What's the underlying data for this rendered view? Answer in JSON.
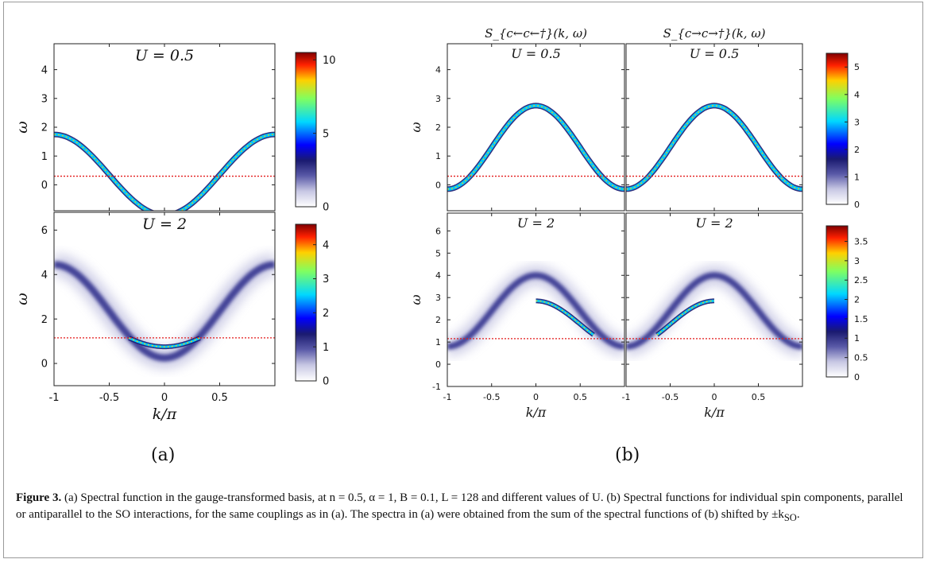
{
  "figure": {
    "label_a": "(a)",
    "label_b": "(b)",
    "caption_lead": "Figure 3.",
    "caption_text": "(a) Spectral function in the gauge-transformed basis, at n = 0.5, α = 1, B = 0.1, L = 128 and different values of U. (b) Spectral functions for individual spin components, parallel or antiparallel to the SO interactions, for the same couplings as in (a). The spectra in (a) were obtained from the sum of the spectral functions of (b) shifted by ±k",
    "caption_sub": "SO",
    "caption_end": "."
  },
  "chart_data": [
    {
      "type": "heatmap",
      "panel": "a-top",
      "title": "U = 0.5",
      "ylabel": "ω",
      "xlim": [
        -1,
        1
      ],
      "ylim": [
        -0.9,
        4.9
      ],
      "yticks": [
        "0",
        "1",
        "2",
        "3",
        "4"
      ],
      "colorbar": {
        "range": [
          0,
          10.5
        ],
        "ticks": [
          "0",
          "5",
          "10"
        ]
      },
      "fermi_line": 0.3
    },
    {
      "type": "heatmap",
      "panel": "a-bottom",
      "title": "U = 2",
      "xlabel": "k/π",
      "ylabel": "ω",
      "xlim": [
        -1,
        1
      ],
      "ylim": [
        -1,
        6.8
      ],
      "xticks": [
        "-1",
        "-0.5",
        "0",
        "0.5"
      ],
      "yticks": [
        "0",
        "2",
        "4",
        "6"
      ],
      "colorbar": {
        "range": [
          0,
          4.6
        ],
        "ticks": [
          "0",
          "1",
          "2",
          "3",
          "4"
        ]
      },
      "fermi_line": 1.15
    },
    {
      "type": "heatmap",
      "panel": "b-top-left",
      "title": "U = 0.5",
      "column_title": "S_{c←c←†}(k, ω)",
      "ylabel": "ω",
      "xlim": [
        -1,
        1
      ],
      "ylim": [
        -0.9,
        4.9
      ],
      "yticks": [
        "0",
        "1",
        "2",
        "3",
        "4"
      ],
      "fermi_line": 0.3
    },
    {
      "type": "heatmap",
      "panel": "b-top-right",
      "title": "U = 0.5",
      "column_title": "S_{c→c→†}(k, ω)",
      "xlim": [
        -1,
        1
      ],
      "ylim": [
        -0.9,
        4.9
      ],
      "colorbar": {
        "range": [
          0,
          5.5
        ],
        "ticks": [
          "0",
          "1",
          "2",
          "3",
          "4",
          "5"
        ]
      },
      "fermi_line": 0.3
    },
    {
      "type": "heatmap",
      "panel": "b-bottom-left",
      "title": "U = 2",
      "xlabel": "k/π",
      "ylabel": "ω",
      "xlim": [
        -1,
        1
      ],
      "ylim": [
        -1,
        6.8
      ],
      "xticks": [
        "-1",
        "-0.5",
        "0",
        "0.5"
      ],
      "yticks": [
        "-1",
        "0",
        "1",
        "2",
        "3",
        "4",
        "5",
        "6"
      ],
      "fermi_line": 1.15
    },
    {
      "type": "heatmap",
      "panel": "b-bottom-right",
      "title": "U = 2",
      "xlabel": "k/π",
      "xlim": [
        -1,
        1
      ],
      "ylim": [
        -1,
        6.8
      ],
      "xticks": [
        "-1",
        "-0.5",
        "0",
        "0.5"
      ],
      "colorbar": {
        "range": [
          0,
          3.9
        ],
        "ticks": [
          "0",
          "0.5",
          "1",
          "1.5",
          "2",
          "2.5",
          "3",
          "3.5"
        ]
      },
      "fermi_line": 1.15
    }
  ]
}
